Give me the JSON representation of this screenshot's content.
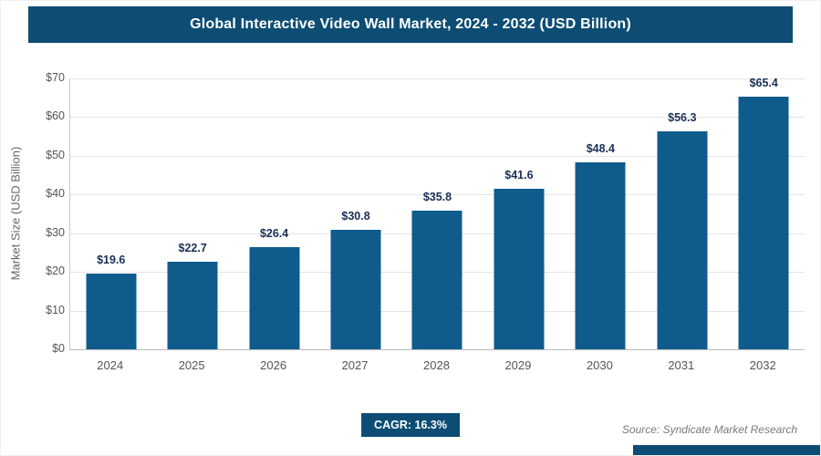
{
  "header": {
    "title": "Global Interactive Video Wall Market, 2024 - 2032 (USD Billion)"
  },
  "chart_data": {
    "type": "bar",
    "title": "Global Interactive Video Wall Market, 2024 - 2032 (USD Billion)",
    "categories": [
      "2024",
      "2025",
      "2026",
      "2027",
      "2028",
      "2029",
      "2030",
      "2031",
      "2032"
    ],
    "values": [
      19.6,
      22.7,
      26.4,
      30.8,
      35.8,
      41.6,
      48.4,
      56.3,
      65.4
    ],
    "value_labels": [
      "$19.6",
      "$22.7",
      "$26.4",
      "$30.8",
      "$35.8",
      "$41.6",
      "$48.4",
      "$56.3",
      "$65.4"
    ],
    "xlabel": "",
    "ylabel": "Market Size (USD Billion)",
    "ylim": [
      0,
      70
    ],
    "ytick_step": 10,
    "ytick_labels": [
      "$0",
      "$10",
      "$20",
      "$30",
      "$40",
      "$50",
      "$60",
      "$70"
    ],
    "grid": true,
    "legend": false,
    "colors": {
      "header_bg": "#0d4d74",
      "bar": "#0f5c8c",
      "value_label": "#1a2f55",
      "gridline": "#e4e4e4"
    }
  },
  "footer": {
    "cagr_label": "CAGR: 16.3%",
    "source": "Source: Syndicate Market Research"
  }
}
